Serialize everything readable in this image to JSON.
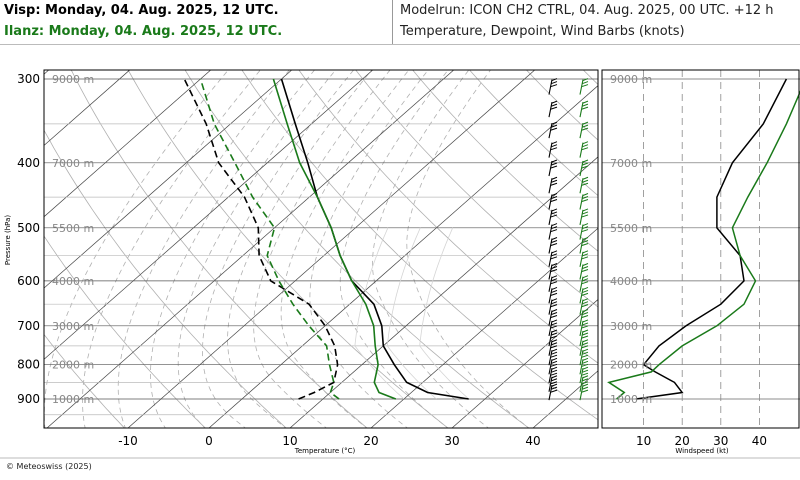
{
  "header": {
    "visp_title": "Visp: Monday, 04. Aug. 2025, 12 UTC.",
    "ilanz_title": "Ilanz: Monday, 04. Aug. 2025, 12 UTC.",
    "modelrun": "Modelrun: ICON CH2 CTRL, 04. Aug. 2025, 00 UTC. +12 h",
    "params": "Temperature, Dewpoint, Wind Barbs (knots)"
  },
  "footer": "© Meteoswiss (2025)",
  "colors": {
    "visp": "#000000",
    "ilanz": "#1a7a1a",
    "grid": "#b0b0b0"
  },
  "chart_data": [
    {
      "type": "line",
      "subtype": "skew-t log-p",
      "xlabel": "Temperature (°C)",
      "ylabel": "Pressure (hPa)",
      "x_ticks": [
        -10,
        0,
        10,
        20,
        30,
        40
      ],
      "y_ticks": [
        300,
        400,
        500,
        600,
        700,
        800,
        900
      ],
      "height_labels": [
        {
          "label": "9000 m",
          "p": 300
        },
        {
          "label": "7000 m",
          "p": 400
        },
        {
          "label": "5500 m",
          "p": 500
        },
        {
          "label": "4000 m",
          "p": 600
        },
        {
          "label": "3000 m",
          "p": 700
        },
        {
          "label": "2000 m",
          "p": 800
        },
        {
          "label": "1000 m",
          "p": 900
        }
      ],
      "ylim": [
        1000,
        290
      ],
      "series": [
        {
          "name": "Visp",
          "kind": "temperature",
          "color": "#000000",
          "dash": false,
          "points": [
            [
              900,
              28
            ],
            [
              880,
              22
            ],
            [
              850,
              18
            ],
            [
              800,
              14
            ],
            [
              750,
              10
            ],
            [
              700,
              7
            ],
            [
              650,
              3
            ],
            [
              600,
              -3
            ],
            [
              550,
              -8
            ],
            [
              500,
              -13
            ],
            [
              450,
              -19
            ],
            [
              400,
              -25
            ],
            [
              350,
              -32
            ],
            [
              300,
              -40
            ]
          ]
        },
        {
          "name": "Visp",
          "kind": "dewpoint",
          "color": "#000000",
          "dash": true,
          "points": [
            [
              900,
              7
            ],
            [
              880,
              8
            ],
            [
              850,
              9
            ],
            [
              800,
              7
            ],
            [
              750,
              4
            ],
            [
              700,
              0
            ],
            [
              650,
              -5
            ],
            [
              600,
              -13
            ],
            [
              550,
              -18
            ],
            [
              500,
              -22
            ],
            [
              450,
              -28
            ],
            [
              400,
              -36
            ],
            [
              350,
              -43
            ],
            [
              300,
              -52
            ]
          ]
        },
        {
          "name": "Ilanz",
          "kind": "temperature",
          "color": "#1a7a1a",
          "dash": false,
          "points": [
            [
              900,
              19
            ],
            [
              880,
              16
            ],
            [
              850,
              14
            ],
            [
              800,
              12
            ],
            [
              750,
              9
            ],
            [
              700,
              6
            ],
            [
              650,
              2
            ],
            [
              600,
              -3
            ],
            [
              550,
              -8
            ],
            [
              500,
              -13
            ],
            [
              450,
              -19
            ],
            [
              400,
              -26
            ],
            [
              350,
              -33
            ],
            [
              300,
              -41
            ]
          ]
        },
        {
          "name": "Ilanz",
          "kind": "dewpoint",
          "color": "#1a7a1a",
          "dash": true,
          "points": [
            [
              900,
              12
            ],
            [
              880,
              10
            ],
            [
              850,
              9
            ],
            [
              800,
              6
            ],
            [
              750,
              3
            ],
            [
              700,
              -2
            ],
            [
              650,
              -7
            ],
            [
              600,
              -12
            ],
            [
              550,
              -17
            ],
            [
              500,
              -20
            ],
            [
              450,
              -27
            ],
            [
              400,
              -34
            ],
            [
              350,
              -42
            ],
            [
              300,
              -50
            ]
          ]
        }
      ]
    },
    {
      "type": "line",
      "xlabel": "Windspeed (kt)",
      "x_ticks": [
        10,
        20,
        30,
        40
      ],
      "xlim": [
        0,
        50
      ],
      "series": [
        {
          "name": "Visp",
          "color": "#000000",
          "points": [
            [
              900,
              8
            ],
            [
              880,
              20
            ],
            [
              850,
              18
            ],
            [
              820,
              13
            ],
            [
              800,
              10
            ],
            [
              750,
              14
            ],
            [
              700,
              21
            ],
            [
              650,
              30
            ],
            [
              600,
              36
            ],
            [
              550,
              35
            ],
            [
              500,
              29
            ],
            [
              450,
              29
            ],
            [
              400,
              33
            ],
            [
              350,
              41
            ],
            [
              300,
              47
            ]
          ]
        },
        {
          "name": "Ilanz",
          "color": "#1a7a1a",
          "points": [
            [
              900,
              3
            ],
            [
              880,
              5
            ],
            [
              850,
              1
            ],
            [
              820,
              12
            ],
            [
              800,
              14
            ],
            [
              750,
              20
            ],
            [
              700,
              29
            ],
            [
              650,
              36
            ],
            [
              600,
              39
            ],
            [
              550,
              35
            ],
            [
              500,
              33
            ],
            [
              450,
              37
            ],
            [
              400,
              42
            ],
            [
              350,
              47
            ],
            [
              300,
              52
            ]
          ]
        }
      ]
    }
  ]
}
